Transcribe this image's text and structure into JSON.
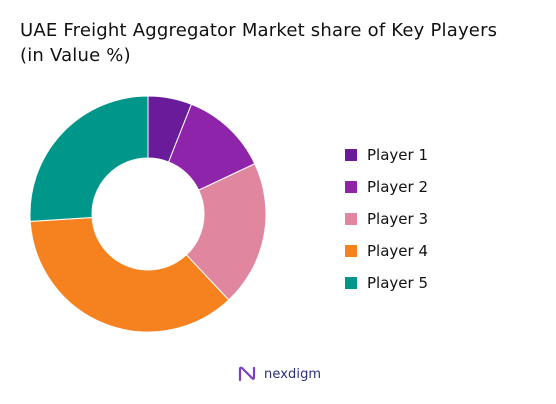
{
  "chart_data": {
    "type": "pie",
    "title": "UAE Freight Aggregator Market share of Key Players",
    "subtitle": "(in Value %)",
    "categories": [
      "Player 1",
      "Player 2",
      "Player 3",
      "Player 4",
      "Player 5"
    ],
    "values": [
      6,
      12,
      20,
      36,
      26
    ],
    "colors": [
      "#6a1b9a",
      "#8e24aa",
      "#e0879f",
      "#f5821f",
      "#00968a"
    ],
    "donut": true,
    "legend": "right",
    "start_angle_deg": 0
  },
  "brand": {
    "name": "nexdigm",
    "color": "#2a2f7a",
    "icon": "nexdigm-logo-icon"
  }
}
